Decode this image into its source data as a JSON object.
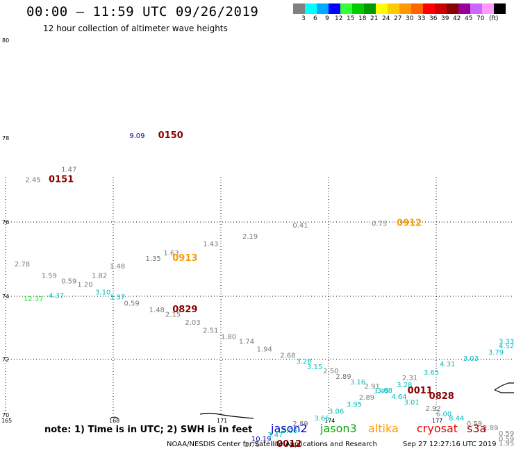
{
  "title": "00:00 – 11:59 UTC 09/26/2019",
  "subtitle": "12 hour collection of altimeter wave heights",
  "legend": {
    "unit": "(ft)",
    "colors": [
      "#808080",
      "#00ffff",
      "#00aaff",
      "#0000ff",
      "#33ff33",
      "#00cc00",
      "#009900",
      "#ffff00",
      "#ffcc00",
      "#ff9900",
      "#ff6600",
      "#ff0000",
      "#cc0000",
      "#880000",
      "#990099",
      "#cc66ff",
      "#ff99ff",
      "#000000"
    ],
    "labels": [
      "3",
      "6",
      "9",
      "12",
      "15",
      "18",
      "21",
      "24",
      "27",
      "30",
      "33",
      "36",
      "39",
      "42",
      "45",
      "70"
    ]
  },
  "axes": {
    "lat_labels": [
      "80",
      "78",
      "76",
      "74",
      "72",
      "70"
    ],
    "lon_labels": [
      "165",
      "168",
      "171",
      "174",
      "177"
    ]
  },
  "map": {
    "lat_range": [
      70,
      80
    ],
    "lon_range": [
      165,
      180
    ]
  },
  "observations": [
    {
      "v": "9.09",
      "c": "#0000aa",
      "lon": 168.45,
      "lat": 78.0
    },
    {
      "v": "1.47",
      "c": "#777777",
      "lon": 166.55,
      "lat": 77.2
    },
    {
      "v": "2.45",
      "c": "#777777",
      "lon": 165.55,
      "lat": 76.95
    },
    {
      "v": "0.75",
      "c": "#777777",
      "lon": 175.2,
      "lat": 75.9
    },
    {
      "v": "0.41",
      "c": "#777777",
      "lon": 173.0,
      "lat": 75.85
    },
    {
      "v": "2.19",
      "c": "#777777",
      "lon": 171.6,
      "lat": 75.55
    },
    {
      "v": "1.43",
      "c": "#777777",
      "lon": 170.5,
      "lat": 75.35
    },
    {
      "v": "1.63",
      "c": "#777777",
      "lon": 169.4,
      "lat": 75.1
    },
    {
      "v": "1.35",
      "c": "#777777",
      "lon": 168.9,
      "lat": 74.95
    },
    {
      "v": "1.48",
      "c": "#777777",
      "lon": 167.9,
      "lat": 74.75
    },
    {
      "v": "2.78",
      "c": "#777777",
      "lon": 165.25,
      "lat": 74.8
    },
    {
      "v": "1.59",
      "c": "#777777",
      "lon": 166.0,
      "lat": 74.5
    },
    {
      "v": "1.82",
      "c": "#777777",
      "lon": 167.4,
      "lat": 74.5
    },
    {
      "v": "0.59",
      "c": "#777777",
      "lon": 166.55,
      "lat": 74.35
    },
    {
      "v": "1.20",
      "c": "#777777",
      "lon": 167.0,
      "lat": 74.25
    },
    {
      "v": "3.10",
      "c": "#00bbbb",
      "lon": 167.5,
      "lat": 74.05
    },
    {
      "v": "4.37",
      "c": "#00bbbb",
      "lon": 166.2,
      "lat": 73.95
    },
    {
      "v": "3.37",
      "c": "#00bbbb",
      "lon": 167.9,
      "lat": 73.9
    },
    {
      "v": "12.37",
      "c": "#33dd33",
      "lon": 165.5,
      "lat": 73.85
    },
    {
      "v": "0.59",
      "c": "#777777",
      "lon": 168.3,
      "lat": 73.7
    },
    {
      "v": "1.48",
      "c": "#777777",
      "lon": 169.0,
      "lat": 73.5
    },
    {
      "v": "2.15",
      "c": "#777777",
      "lon": 169.45,
      "lat": 73.35
    },
    {
      "v": "2.03",
      "c": "#777777",
      "lon": 170.0,
      "lat": 73.1
    },
    {
      "v": "2.51",
      "c": "#777777",
      "lon": 170.5,
      "lat": 72.85
    },
    {
      "v": "1.80",
      "c": "#777777",
      "lon": 171.0,
      "lat": 72.65
    },
    {
      "v": "1.74",
      "c": "#777777",
      "lon": 171.5,
      "lat": 72.5
    },
    {
      "v": "1.94",
      "c": "#777777",
      "lon": 172.0,
      "lat": 72.25
    },
    {
      "v": "2.68",
      "c": "#777777",
      "lon": 172.65,
      "lat": 72.05
    },
    {
      "v": "3.28",
      "c": "#00bbbb",
      "lon": 173.1,
      "lat": 71.85
    },
    {
      "v": "3.15",
      "c": "#00bbbb",
      "lon": 173.4,
      "lat": 71.65
    },
    {
      "v": "2.50",
      "c": "#777777",
      "lon": 173.85,
      "lat": 71.5
    },
    {
      "v": "2.89",
      "c": "#777777",
      "lon": 174.2,
      "lat": 71.3
    },
    {
      "v": "3.16",
      "c": "#00bbbb",
      "lon": 174.6,
      "lat": 71.1
    },
    {
      "v": "2.91",
      "c": "#777777",
      "lon": 175.0,
      "lat": 70.95
    },
    {
      "v": "3.68",
      "c": "#00bbbb",
      "lon": 175.35,
      "lat": 70.8
    },
    {
      "v": "3.43",
      "c": "#00bbbb",
      "lon": 175.25,
      "lat": 70.78
    },
    {
      "v": "2.89",
      "c": "#777777",
      "lon": 174.85,
      "lat": 70.55
    },
    {
      "v": "3.28",
      "c": "#00bbbb",
      "lon": 175.9,
      "lat": 71.0
    },
    {
      "v": "2.31",
      "c": "#777777",
      "lon": 176.05,
      "lat": 71.25
    },
    {
      "v": "3.65",
      "c": "#00bbbb",
      "lon": 176.65,
      "lat": 71.45
    },
    {
      "v": "4.31",
      "c": "#00bbbb",
      "lon": 177.1,
      "lat": 71.75
    },
    {
      "v": "3.03",
      "c": "#00bbbb",
      "lon": 177.75,
      "lat": 71.95
    },
    {
      "v": "3.79",
      "c": "#00bbbb",
      "lon": 178.45,
      "lat": 72.15
    },
    {
      "v": "4.52",
      "c": "#00bbbb",
      "lon": 179.1,
      "lat": 72.35
    },
    {
      "v": "3.33",
      "c": "#00bbbb",
      "lon": 179.75,
      "lat": 72.5
    },
    {
      "v": "4.64",
      "c": "#00bbbb",
      "lon": 175.75,
      "lat": 70.58
    },
    {
      "v": "3.01",
      "c": "#00bbbb",
      "lon": 176.1,
      "lat": 70.38
    },
    {
      "v": "2.92",
      "c": "#777777",
      "lon": 176.7,
      "lat": 70.15
    },
    {
      "v": "6.00",
      "c": "#00bbbb",
      "lon": 177.0,
      "lat": 69.95
    },
    {
      "v": "8.44",
      "c": "#00bbbb",
      "lon": 177.35,
      "lat": 69.8
    },
    {
      "v": "0.59",
      "c": "#777777",
      "lon": 177.85,
      "lat": 69.6
    },
    {
      "v": "2.89",
      "c": "#777777",
      "lon": 178.3,
      "lat": 69.45
    },
    {
      "v": "0.59",
      "c": "#777777",
      "lon": 178.8,
      "lat": 69.25
    },
    {
      "v": "0.59",
      "c": "#777777",
      "lon": 179.4,
      "lat": 69.05
    },
    {
      "v": "1.95",
      "c": "#777777",
      "lon": 179.9,
      "lat": 68.9
    },
    {
      "v": "3.06",
      "c": "#00bbbb",
      "lon": 174.0,
      "lat": 70.05
    },
    {
      "v": "3.95",
      "c": "#00bbbb",
      "lon": 174.5,
      "lat": 70.3
    },
    {
      "v": "3.66",
      "c": "#00bbbb",
      "lon": 173.6,
      "lat": 69.8
    },
    {
      "v": "2.89",
      "c": "#777777",
      "lon": 173.0,
      "lat": 69.6
    },
    {
      "v": "5.06",
      "c": "#00bbbb",
      "lon": 172.7,
      "lat": 69.35
    },
    {
      "v": "3.47",
      "c": "#00bbbb",
      "lon": 172.3,
      "lat": 69.2
    },
    {
      "v": "10.19",
      "c": "#0000aa",
      "lon": 171.85,
      "lat": 69.05
    },
    {
      "v": "2.76",
      "c": "#777777",
      "lon": 171.65,
      "lat": 68.85
    }
  ],
  "pass_times": [
    {
      "t": "0150",
      "c": "#880000",
      "lon": 169.25,
      "lat": 78.0
    },
    {
      "t": "0151",
      "c": "#880000",
      "lon": 166.2,
      "lat": 76.95
    },
    {
      "t": "0912",
      "c": "#ff9900",
      "lon": 175.9,
      "lat": 75.9
    },
    {
      "t": "0913",
      "c": "#ff9900",
      "lon": 169.65,
      "lat": 74.95
    },
    {
      "t": "0829",
      "c": "#880000",
      "lon": 169.65,
      "lat": 73.5
    },
    {
      "t": "0011",
      "c": "#880000",
      "lon": 176.2,
      "lat": 70.78
    },
    {
      "t": "0828",
      "c": "#880000",
      "lon": 176.8,
      "lat": 70.58
    },
    {
      "t": "0012",
      "c": "#880000",
      "lon": 172.55,
      "lat": 68.85
    }
  ],
  "footer": {
    "note": "note:  1) Time is in UTC;  2) SWH is in feet",
    "missions": [
      {
        "name": "jason2",
        "color": "#0000cc"
      },
      {
        "name": "jason3",
        "color": "#00aa00"
      },
      {
        "name": "altika",
        "color": "#ff9900"
      },
      {
        "name": "cryosat",
        "color": "#ee0000"
      },
      {
        "name": "s3a",
        "color": "#990000"
      }
    ],
    "credit": "NOAA/NESDIS Center for Satellite Applications and Research",
    "timestamp": "Sep 27 12:27:16 UTC 2019"
  }
}
